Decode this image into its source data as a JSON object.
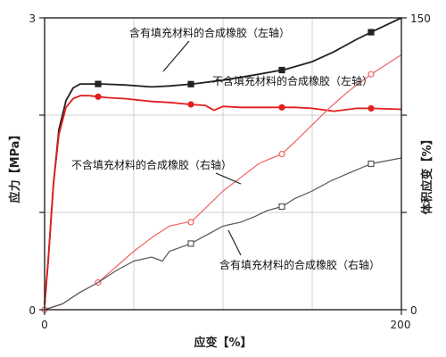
{
  "chart_data": {
    "type": "line",
    "xlabel": "应变【%】",
    "ylabel_left": "应力【MPa】",
    "ylabel_right": "体积应变【%】",
    "xlim": [
      0,
      200
    ],
    "ylim_left": [
      0,
      3
    ],
    "ylim_right": [
      0,
      150
    ],
    "x_ticks": [
      "0",
      "200"
    ],
    "y_left_ticks": [
      "0",
      "3"
    ],
    "y_right_ticks": [
      "0",
      "150"
    ],
    "grid": true,
    "series": [
      {
        "name": "含有填充材料的合成橡胶（左轴）",
        "axis": "left",
        "color": "#222222",
        "marker": "filled-square",
        "points": [
          [
            0,
            0.05
          ],
          [
            2,
            0.5
          ],
          [
            5,
            1.3
          ],
          [
            8,
            1.85
          ],
          [
            12,
            2.15
          ],
          [
            16,
            2.28
          ],
          [
            20,
            2.32
          ],
          [
            25,
            2.32
          ],
          [
            32,
            2.32
          ],
          [
            45,
            2.31
          ],
          [
            60,
            2.29
          ],
          [
            70,
            2.3
          ],
          [
            83,
            2.32
          ],
          [
            100,
            2.36
          ],
          [
            110,
            2.39
          ],
          [
            120,
            2.42
          ],
          [
            135,
            2.47
          ],
          [
            150,
            2.55
          ],
          [
            162,
            2.65
          ],
          [
            175,
            2.78
          ],
          [
            185,
            2.87
          ],
          [
            200,
            3.0
          ]
        ],
        "markers_x": [
          30,
          82,
          133,
          183
        ]
      },
      {
        "name": "不含填充材料的合成橡胶（左轴）",
        "axis": "left",
        "color": "#e21e1e",
        "marker": "filled-circle",
        "points": [
          [
            0,
            0.05
          ],
          [
            2,
            0.5
          ],
          [
            5,
            1.3
          ],
          [
            8,
            1.8
          ],
          [
            12,
            2.08
          ],
          [
            16,
            2.17
          ],
          [
            20,
            2.2
          ],
          [
            25,
            2.2
          ],
          [
            35,
            2.18
          ],
          [
            45,
            2.17
          ],
          [
            60,
            2.14
          ],
          [
            70,
            2.13
          ],
          [
            82,
            2.11
          ],
          [
            90,
            2.1
          ],
          [
            95,
            2.05
          ],
          [
            100,
            2.09
          ],
          [
            110,
            2.08
          ],
          [
            120,
            2.08
          ],
          [
            133,
            2.08
          ],
          [
            140,
            2.08
          ],
          [
            150,
            2.07
          ],
          [
            162,
            2.04
          ],
          [
            175,
            2.07
          ],
          [
            183,
            2.07
          ],
          [
            200,
            2.06
          ]
        ],
        "markers_x": [
          30,
          82,
          133,
          183
        ]
      },
      {
        "name": "不含填充材料的合成橡胶（右轴）",
        "axis": "right",
        "color": "#f06060",
        "marker": "open-circle",
        "points": [
          [
            0,
            0
          ],
          [
            10,
            3
          ],
          [
            20,
            9
          ],
          [
            30,
            14
          ],
          [
            40,
            22
          ],
          [
            50,
            30
          ],
          [
            60,
            37
          ],
          [
            70,
            43
          ],
          [
            80,
            45
          ],
          [
            82,
            45
          ],
          [
            90,
            52
          ],
          [
            100,
            61
          ],
          [
            110,
            68
          ],
          [
            120,
            75
          ],
          [
            125,
            77
          ],
          [
            133,
            80
          ],
          [
            140,
            86
          ],
          [
            150,
            95
          ],
          [
            160,
            104
          ],
          [
            170,
            112
          ],
          [
            183,
            121
          ],
          [
            200,
            131
          ]
        ],
        "markers_x": [
          0,
          30,
          82,
          133,
          183
        ]
      },
      {
        "name": "含有填充材料的合成橡胶（右轴）",
        "axis": "right",
        "color": "#555555",
        "marker": "open-square",
        "points": [
          [
            0,
            0
          ],
          [
            10,
            3
          ],
          [
            20,
            9
          ],
          [
            30,
            14
          ],
          [
            40,
            20
          ],
          [
            50,
            25
          ],
          [
            60,
            27
          ],
          [
            66,
            25
          ],
          [
            70,
            30
          ],
          [
            82,
            34
          ],
          [
            90,
            38
          ],
          [
            100,
            43
          ],
          [
            110,
            45
          ],
          [
            118,
            48
          ],
          [
            125,
            51
          ],
          [
            133,
            53
          ],
          [
            140,
            57
          ],
          [
            150,
            61
          ],
          [
            160,
            66
          ],
          [
            170,
            70
          ],
          [
            183,
            75
          ],
          [
            200,
            78
          ]
        ],
        "markers_x": [
          82,
          133,
          183
        ]
      }
    ],
    "annotations": [
      {
        "text": "含有填充材料的合成橡胶（左轴）",
        "series": 0
      },
      {
        "text": "不含填充材料的合成橡胶（左轴）",
        "series": 1
      },
      {
        "text": "不含填充材料的合成橡胶（右轴）",
        "series": 2
      },
      {
        "text": "含有填充材料的合成橡胶（右轴）",
        "series": 3
      }
    ]
  }
}
